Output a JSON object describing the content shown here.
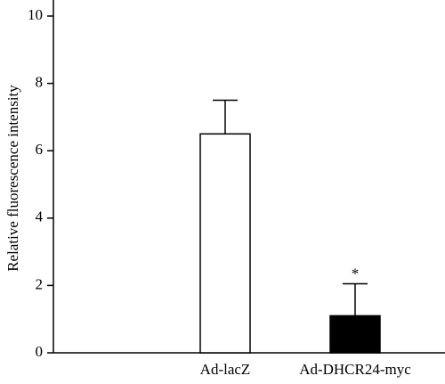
{
  "chart_data": {
    "type": "bar",
    "y_label": "Relative fluorescence intensity",
    "categories": [
      "Ad-lacZ",
      "Ad-DHCR24-myc"
    ],
    "values": [
      6.5,
      1.1
    ],
    "errors": [
      1.0,
      0.95
    ],
    "colors": [
      "#ffffff",
      "#000000"
    ],
    "edge_color": "#000000",
    "annotations": [
      "*"
    ],
    "ylim": [
      0,
      10
    ],
    "yticks": [
      0,
      2,
      4,
      6,
      8,
      10
    ],
    "grid": false
  }
}
